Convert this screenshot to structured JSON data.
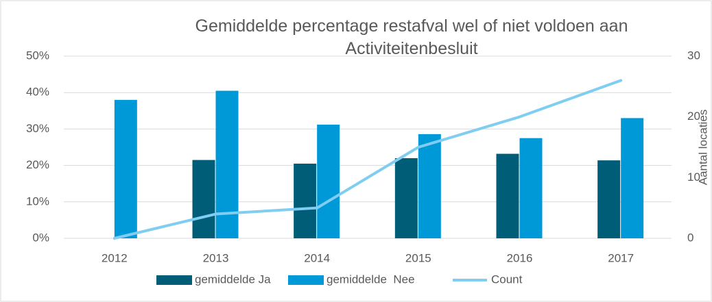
{
  "chart_data": {
    "type": "bar",
    "title": "Gemiddelde percentage restafval wel of niet voldoen aan Activiteitenbesluit",
    "y2_label": "Aantal locaties",
    "categories": [
      "2012",
      "2013",
      "2014",
      "2015",
      "2016",
      "2017"
    ],
    "series": [
      {
        "name": "gemiddelde Ja",
        "color": "#005d77",
        "type": "bar",
        "values": [
          null,
          21.5,
          20.5,
          22,
          23.2,
          21.4
        ]
      },
      {
        "name": "gemiddelde  Nee",
        "color": "#0099d8",
        "type": "bar",
        "values": [
          38,
          40.5,
          31.2,
          28.6,
          27.5,
          33
        ]
      },
      {
        "name": "Count",
        "color": "#7fcdf0",
        "type": "line",
        "axis": "y2",
        "values": [
          0,
          4,
          5,
          15,
          20,
          26
        ]
      }
    ],
    "ylim": [
      0,
      50
    ],
    "yticks": [
      {
        "value": 0,
        "label": "0%"
      },
      {
        "value": 10,
        "label": "10%"
      },
      {
        "value": 20,
        "label": "20%"
      },
      {
        "value": 30,
        "label": "30%"
      },
      {
        "value": 40,
        "label": "40%"
      },
      {
        "value": 50,
        "label": "50%"
      }
    ],
    "y2lim": [
      0,
      30
    ],
    "y2ticks": [
      0,
      10,
      20,
      30
    ],
    "grid": true,
    "legend": "bottom"
  }
}
